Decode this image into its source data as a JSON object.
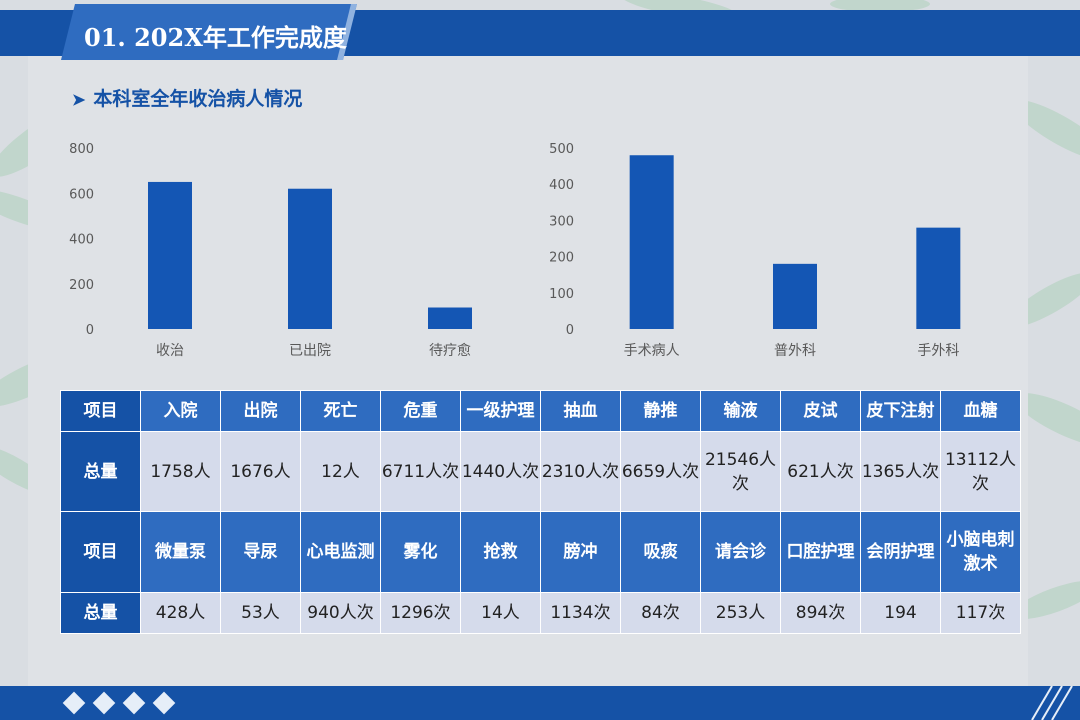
{
  "header": {
    "title": "01. 202X年工作完成度"
  },
  "section": {
    "title": "本科室全年收治病人情况",
    "arrow_icon": "chevron-right-icon"
  },
  "colors": {
    "primary": "#1552a6",
    "bar": "#1456b4",
    "header_cell": "#1552a6",
    "value_cell": "#d5dbeb"
  },
  "chart_data": [
    {
      "type": "bar",
      "categories": [
        "收治",
        "已出院",
        "待疗愈"
      ],
      "values": [
        650,
        620,
        95
      ],
      "ylim": [
        0,
        800
      ],
      "yticks": [
        0,
        200,
        400,
        600,
        800
      ],
      "title": "",
      "xlabel": "",
      "ylabel": "",
      "grid": false
    },
    {
      "type": "bar",
      "categories": [
        "手术病人",
        "普外科",
        "手外科"
      ],
      "values": [
        480,
        180,
        280
      ],
      "ylim": [
        0,
        500
      ],
      "yticks": [
        0,
        100,
        200,
        300,
        400,
        500
      ],
      "title": "",
      "xlabel": "",
      "ylabel": "",
      "grid": false
    }
  ],
  "table": {
    "row_label_item": "项目",
    "row_label_total": "总量",
    "row1_headers": [
      "入院",
      "出院",
      "死亡",
      "危重",
      "一级护理",
      "抽血",
      "静推",
      "输液",
      "皮试",
      "皮下注射",
      "血糖"
    ],
    "row1_values": [
      "1758人",
      "1676人",
      "12人",
      "6711人次",
      "1440人次",
      "2310人次",
      "6659人次",
      "21546人次",
      "621人次",
      "1365人次",
      "13112人次"
    ],
    "row2_headers": [
      "微量泵",
      "导尿",
      "心电监测",
      "雾化",
      "抢救",
      "膀冲",
      "吸痰",
      "请会诊",
      "口腔护理",
      "会阴护理",
      "小脑电刺激术"
    ],
    "row2_values": [
      "428人",
      "53人",
      "940人次",
      "1296次",
      "14人",
      "1134次",
      "84次",
      "253人",
      "894次",
      "194",
      "117次"
    ]
  }
}
